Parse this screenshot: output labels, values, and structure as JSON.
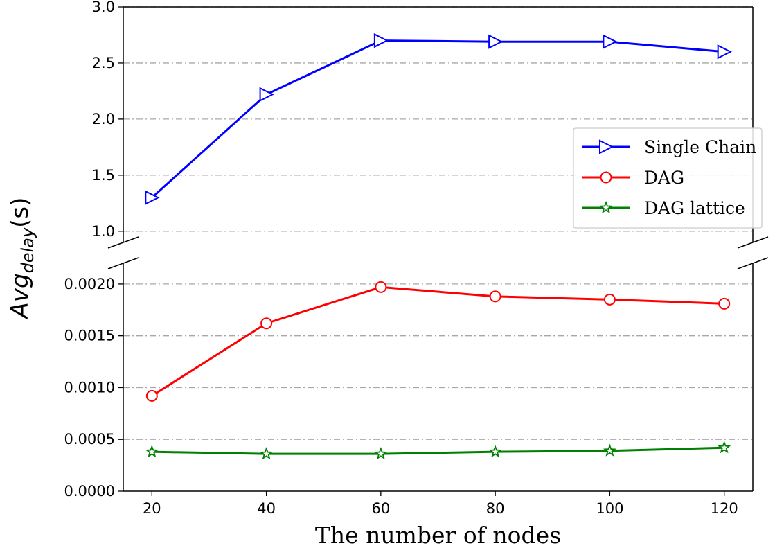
{
  "chart_data": {
    "type": "line",
    "xlabel": "The number of nodes",
    "ylabel": {
      "base": "Avg",
      "subscript": "delay",
      "suffix": "(s)"
    },
    "x": [
      20,
      40,
      60,
      80,
      100,
      120
    ],
    "xticks": [
      "20",
      "40",
      "60",
      "80",
      "100",
      "120"
    ],
    "xlim": [
      15,
      125
    ],
    "broken_axis": true,
    "upper_panel": {
      "ylim": [
        0.9,
        3.0
      ],
      "yticks": [
        1.0,
        1.5,
        2.0,
        2.5,
        3.0
      ],
      "ytick_labels": [
        "1.0",
        "1.5",
        "2.0",
        "2.5",
        "3.0"
      ]
    },
    "lower_panel": {
      "ylim": [
        0.0,
        0.0022
      ],
      "yticks": [
        0.0,
        0.0005,
        0.001,
        0.0015,
        0.002
      ],
      "ytick_labels": [
        "0.0000",
        "0.0005",
        "0.0010",
        "0.0015",
        "0.0020"
      ]
    },
    "grid": "horizontal dash-dot",
    "legend_position": "right (upper panel)",
    "series": [
      {
        "name": "Single Chain",
        "panel": "upper",
        "color": "#0000ff",
        "marker": "triangle-right",
        "values": [
          1.3,
          2.22,
          2.7,
          2.69,
          2.69,
          2.6
        ]
      },
      {
        "name": "DAG",
        "panel": "lower",
        "color": "#ff0000",
        "marker": "circle",
        "values": [
          0.00092,
          0.00162,
          0.00197,
          0.00188,
          0.00185,
          0.00181
        ]
      },
      {
        "name": "DAG lattice",
        "panel": "lower",
        "color": "#008000",
        "marker": "star",
        "values": [
          0.00038,
          0.00036,
          0.00036,
          0.00038,
          0.00039,
          0.00042
        ]
      }
    ]
  }
}
